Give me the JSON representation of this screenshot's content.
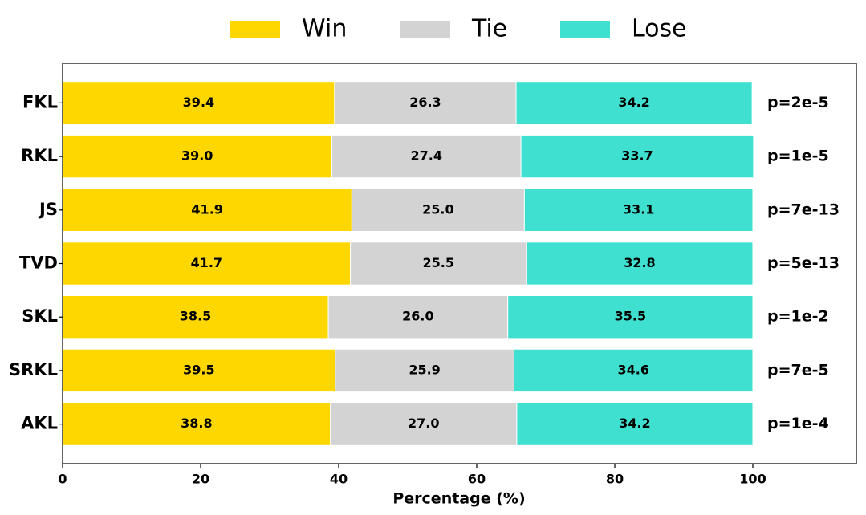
{
  "chart_data": {
    "type": "stacked-barh",
    "xlabel": "Percentage (%)",
    "categories": [
      "FKL",
      "RKL",
      "JS",
      "TVD",
      "SKL",
      "SRKL",
      "AKL"
    ],
    "series": [
      {
        "name": "Win",
        "color": "#FFD700",
        "values": [
          39.4,
          39.0,
          41.9,
          41.7,
          38.5,
          39.5,
          38.8
        ],
        "value_labels": [
          "39.4",
          "39.0",
          "41.9",
          "41.7",
          "38.5",
          "39.5",
          "38.8"
        ]
      },
      {
        "name": "Tie",
        "color": "#D3D3D3",
        "values": [
          26.3,
          27.4,
          25.0,
          25.5,
          26.0,
          25.9,
          27.0
        ],
        "value_labels": [
          "26.3",
          "27.4",
          "25.0",
          "25.5",
          "26.0",
          "25.9",
          "27.0"
        ]
      },
      {
        "name": "Lose",
        "color": "#40E0D0",
        "values": [
          34.2,
          33.7,
          33.1,
          32.8,
          35.5,
          34.6,
          34.2
        ],
        "value_labels": [
          "34.2",
          "33.7",
          "33.1",
          "32.8",
          "35.5",
          "34.6",
          "34.2"
        ]
      }
    ],
    "annotations": [
      "p=2e-5",
      "p=1e-5",
      "p=7e-13",
      "p=5e-13",
      "p=1e-2",
      "p=7e-5",
      "p=1e-4"
    ],
    "xlim": [
      0,
      115
    ],
    "xticks": [
      0,
      20,
      40,
      60,
      80,
      100
    ],
    "legend": "top"
  }
}
